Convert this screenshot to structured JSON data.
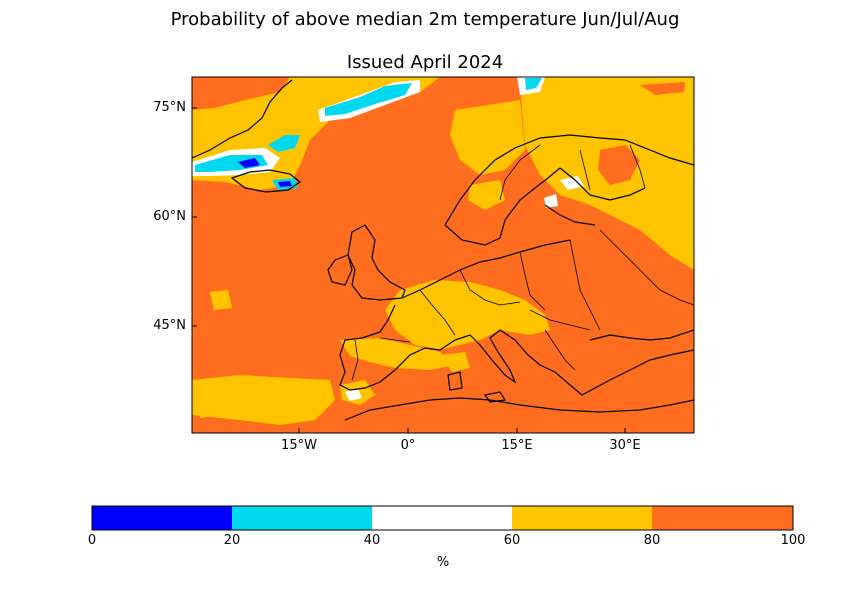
{
  "title": "Probability of above median 2m temperature Jun/Jul/Aug",
  "subtitle": "Issued April 2024",
  "map": {
    "lat_ticks": [
      {
        "value": 75,
        "label": "75°N"
      },
      {
        "value": 60,
        "label": "60°N"
      },
      {
        "value": 45,
        "label": "45°N"
      }
    ],
    "lon_ticks": [
      {
        "value": -15,
        "label": "15°W"
      },
      {
        "value": 0,
        "label": "0°"
      },
      {
        "value": 15,
        "label": "15°E"
      },
      {
        "value": 30,
        "label": "30°E"
      }
    ],
    "lon_range": [
      -30,
      40
    ],
    "lat_range": [
      30,
      79
    ],
    "projection": "plate carree"
  },
  "colorbar": {
    "unit": "%",
    "ticks": [
      "0",
      "20",
      "40",
      "60",
      "80",
      "100"
    ],
    "bins": [
      {
        "range": [
          0,
          20
        ],
        "color": "#0000ff"
      },
      {
        "range": [
          20,
          40
        ],
        "color": "#00d8f0"
      },
      {
        "range": [
          40,
          60
        ],
        "color": "#ffffff"
      },
      {
        "range": [
          60,
          80
        ],
        "color": "#ffc400"
      },
      {
        "range": [
          80,
          100
        ],
        "color": "#ff6e1e"
      }
    ]
  }
}
